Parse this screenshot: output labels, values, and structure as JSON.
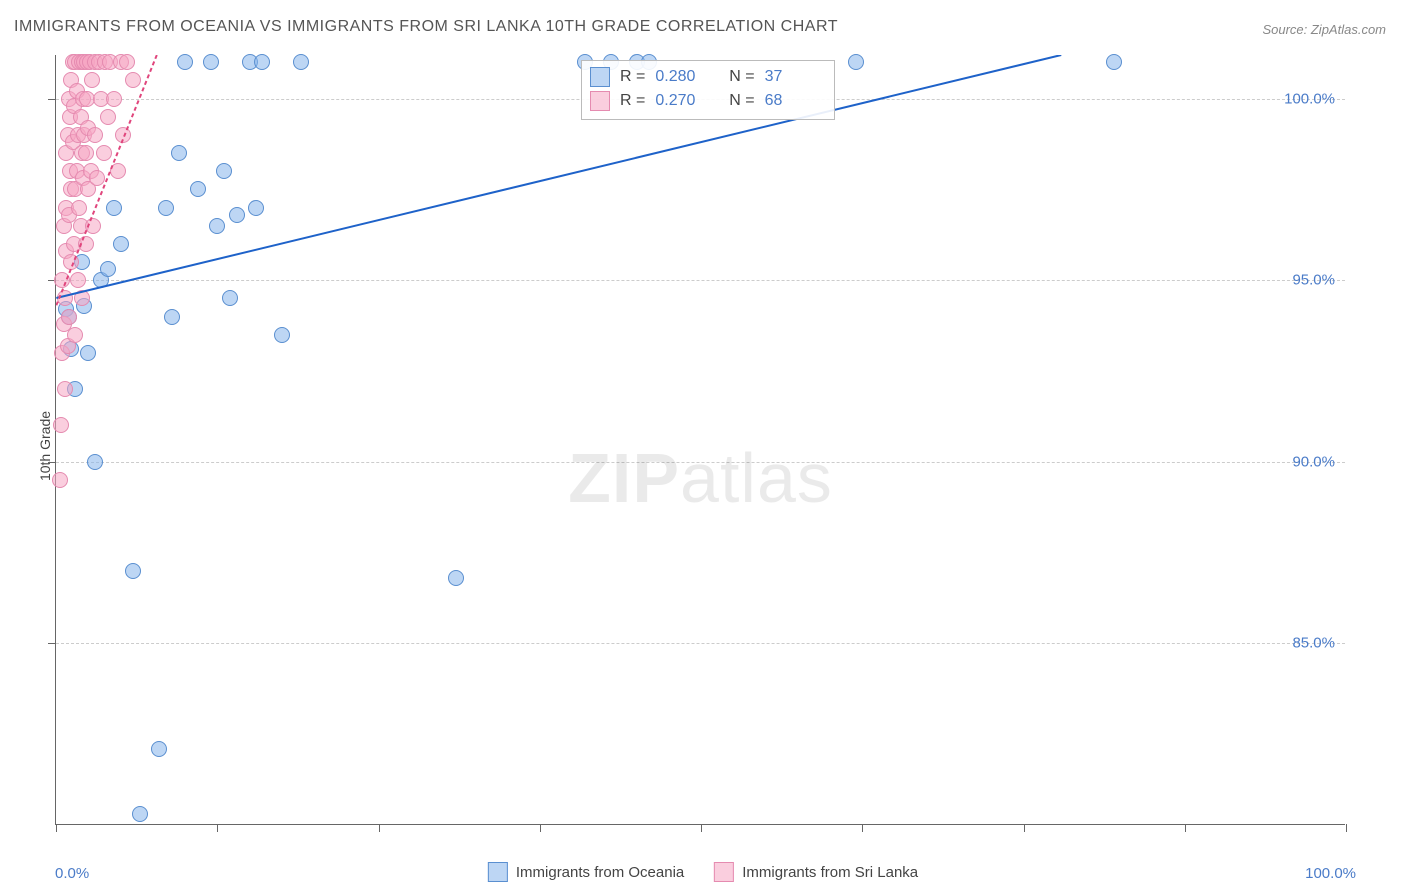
{
  "title": "IMMIGRANTS FROM OCEANIA VS IMMIGRANTS FROM SRI LANKA 10TH GRADE CORRELATION CHART",
  "source": "Source: ZipAtlas.com",
  "y_label": "10th Grade",
  "watermark_bold": "ZIP",
  "watermark_rest": "atlas",
  "chart": {
    "type": "scatter",
    "xlim": [
      0,
      100
    ],
    "ylim": [
      80,
      101.2
    ],
    "x_ticks": [
      0,
      12.5,
      25,
      37.5,
      50,
      62.5,
      75,
      87.5,
      100
    ],
    "x_tick_labels_left": "0.0%",
    "x_tick_labels_right": "100.0%",
    "y_ticks": [
      85,
      90,
      95,
      100
    ],
    "y_tick_labels": [
      "85.0%",
      "90.0%",
      "95.0%",
      "100.0%"
    ],
    "grid_color": "#cccccc",
    "background_color": "#ffffff",
    "axis_color": "#666666",
    "label_color": "#4a7bc8",
    "title_fontsize": 16,
    "label_fontsize": 14,
    "tick_fontsize": 15,
    "marker_size": 16,
    "series": [
      {
        "name": "Immigrants from Oceania",
        "color_fill": "#87b4eb",
        "color_stroke": "#5a8fd0",
        "fill_opacity": 0.55,
        "R": "0.280",
        "N": "37",
        "trend": {
          "x1": 0,
          "y1": 94.5,
          "x2": 78,
          "y2": 101.2,
          "stroke": "#1e62c9",
          "width": 2
        },
        "points": [
          [
            0.8,
            94.2
          ],
          [
            1.0,
            94.0
          ],
          [
            1.2,
            93.1
          ],
          [
            1.5,
            92.0
          ],
          [
            2.0,
            95.5
          ],
          [
            2.2,
            94.3
          ],
          [
            2.5,
            93.0
          ],
          [
            3.0,
            90.0
          ],
          [
            3.5,
            95.0
          ],
          [
            4.0,
            95.3
          ],
          [
            4.5,
            97.0
          ],
          [
            5.0,
            96.0
          ],
          [
            6.0,
            87.0
          ],
          [
            6.5,
            80.3
          ],
          [
            8.0,
            82.1
          ],
          [
            8.5,
            97.0
          ],
          [
            9.0,
            94.0
          ],
          [
            9.5,
            98.5
          ],
          [
            10.0,
            101.0
          ],
          [
            11.0,
            97.5
          ],
          [
            12.0,
            101.0
          ],
          [
            12.5,
            96.5
          ],
          [
            13.0,
            98.0
          ],
          [
            13.5,
            94.5
          ],
          [
            14.0,
            96.8
          ],
          [
            15.0,
            101.0
          ],
          [
            15.5,
            97.0
          ],
          [
            16.0,
            101.0
          ],
          [
            17.5,
            93.5
          ],
          [
            19.0,
            101.0
          ],
          [
            31.0,
            86.8
          ],
          [
            41.0,
            101.0
          ],
          [
            43.0,
            101.0
          ],
          [
            45.0,
            101.0
          ],
          [
            46.0,
            101.0
          ],
          [
            62.0,
            101.0
          ],
          [
            82.0,
            101.0
          ]
        ]
      },
      {
        "name": "Immigrants from Sri Lanka",
        "color_fill": "#f5a5c3",
        "color_stroke": "#e58bb0",
        "fill_opacity": 0.55,
        "R": "0.270",
        "N": "68",
        "trend": {
          "x1": 0,
          "y1": 94.3,
          "x2": 7.8,
          "y2": 101.2,
          "stroke": "#e0457c",
          "width": 2,
          "dash": "4,3"
        },
        "points": [
          [
            0.3,
            89.5
          ],
          [
            0.4,
            91.0
          ],
          [
            0.5,
            93.0
          ],
          [
            0.5,
            95.0
          ],
          [
            0.6,
            93.8
          ],
          [
            0.6,
            96.5
          ],
          [
            0.7,
            92.0
          ],
          [
            0.7,
            94.5
          ],
          [
            0.8,
            97.0
          ],
          [
            0.8,
            98.5
          ],
          [
            0.8,
            95.8
          ],
          [
            0.9,
            99.0
          ],
          [
            0.9,
            93.2
          ],
          [
            1.0,
            100.0
          ],
          [
            1.0,
            96.8
          ],
          [
            1.0,
            94.0
          ],
          [
            1.1,
            98.0
          ],
          [
            1.1,
            99.5
          ],
          [
            1.2,
            100.5
          ],
          [
            1.2,
            97.5
          ],
          [
            1.2,
            95.5
          ],
          [
            1.3,
            101.0
          ],
          [
            1.3,
            98.8
          ],
          [
            1.4,
            96.0
          ],
          [
            1.4,
            99.8
          ],
          [
            1.5,
            101.0
          ],
          [
            1.5,
            97.5
          ],
          [
            1.5,
            93.5
          ],
          [
            1.6,
            100.2
          ],
          [
            1.6,
            98.0
          ],
          [
            1.7,
            99.0
          ],
          [
            1.7,
            95.0
          ],
          [
            1.8,
            101.0
          ],
          [
            1.8,
            97.0
          ],
          [
            1.9,
            99.5
          ],
          [
            1.9,
            96.5
          ],
          [
            2.0,
            101.0
          ],
          [
            2.0,
            98.5
          ],
          [
            2.0,
            94.5
          ],
          [
            2.1,
            100.0
          ],
          [
            2.1,
            97.8
          ],
          [
            2.2,
            101.0
          ],
          [
            2.2,
            99.0
          ],
          [
            2.3,
            96.0
          ],
          [
            2.3,
            98.5
          ],
          [
            2.4,
            101.0
          ],
          [
            2.4,
            100.0
          ],
          [
            2.5,
            97.5
          ],
          [
            2.5,
            99.2
          ],
          [
            2.6,
            101.0
          ],
          [
            2.7,
            98.0
          ],
          [
            2.8,
            100.5
          ],
          [
            2.9,
            96.5
          ],
          [
            3.0,
            101.0
          ],
          [
            3.0,
            99.0
          ],
          [
            3.2,
            97.8
          ],
          [
            3.3,
            101.0
          ],
          [
            3.5,
            100.0
          ],
          [
            3.7,
            98.5
          ],
          [
            3.8,
            101.0
          ],
          [
            4.0,
            99.5
          ],
          [
            4.2,
            101.0
          ],
          [
            4.5,
            100.0
          ],
          [
            4.8,
            98.0
          ],
          [
            5.0,
            101.0
          ],
          [
            5.2,
            99.0
          ],
          [
            5.5,
            101.0
          ],
          [
            6.0,
            100.5
          ]
        ]
      }
    ]
  },
  "stats_box": {
    "r_label": "R =",
    "n_label": "N ="
  },
  "bottom_legend": {
    "item1": "Immigrants from Oceania",
    "item2": "Immigrants from Sri Lanka"
  }
}
